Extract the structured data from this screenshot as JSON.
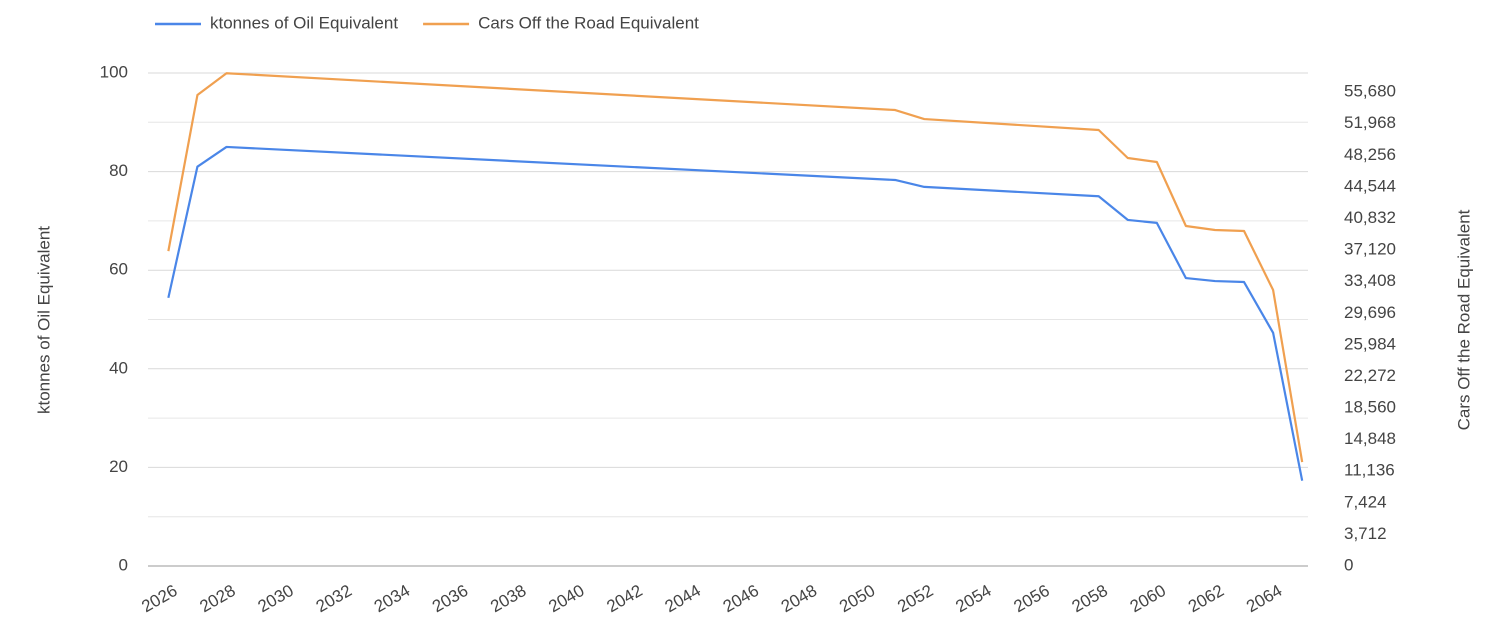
{
  "chart_data": {
    "type": "line",
    "x": [
      2026,
      2027,
      2028,
      2051,
      2052,
      2058,
      2059,
      2060,
      2061,
      2062,
      2063,
      2064,
      2065
    ],
    "series": [
      {
        "name": "ktonnes of Oil Equivalent",
        "color": "#4a86e8",
        "axis": "y",
        "values": [
          54.4,
          81,
          85,
          78.3,
          76.9,
          75,
          70.2,
          69.6,
          58.4,
          57.8,
          57.6,
          47.3,
          17.3
        ]
      },
      {
        "name": "Cars Off the Road Equivalent",
        "color": "#f0a050",
        "axis": "y2",
        "values": [
          37000,
          55340,
          57900,
          53580,
          52520,
          51230,
          47940,
          47470,
          39950,
          39480,
          39360,
          32430,
          12220
        ]
      }
    ],
    "ylabel": "ktonnes of Oil Equivalent",
    "y2label": "Cars Off the Road Equivalent",
    "xlim": [
      2025.3,
      2065.2
    ],
    "xticks": [
      2026,
      2028,
      2030,
      2032,
      2034,
      2036,
      2038,
      2040,
      2042,
      2044,
      2046,
      2048,
      2050,
      2052,
      2054,
      2056,
      2058,
      2060,
      2062,
      2064
    ],
    "ylim": [
      0,
      100
    ],
    "yticks": [
      0,
      20,
      40,
      60,
      80,
      100
    ],
    "yminorticks": [
      10,
      30,
      50,
      70,
      90
    ],
    "y2lim": [
      0,
      57930
    ],
    "y2ticks": [
      0,
      {
        "value": 3712,
        "label": "3,712"
      },
      {
        "value": 7424,
        "label": "7,424"
      },
      {
        "value": 11136,
        "label": "11,136"
      },
      {
        "value": 14848,
        "label": "14,848"
      },
      {
        "value": 18560,
        "label": "18,560"
      },
      {
        "value": 22272,
        "label": "22,272"
      },
      {
        "value": 25984,
        "label": "25,984"
      },
      {
        "value": 29696,
        "label": "29,696"
      },
      {
        "value": 33408,
        "label": "33,408"
      },
      {
        "value": 37120,
        "label": "37,120"
      },
      {
        "value": 40832,
        "label": "40,832"
      },
      {
        "value": 44544,
        "label": "44,544"
      },
      {
        "value": 48256,
        "label": "48,256"
      },
      {
        "value": 51968,
        "label": "51,968"
      },
      {
        "value": 55680,
        "label": "55,680"
      }
    ],
    "grid": true,
    "legend": "top"
  }
}
